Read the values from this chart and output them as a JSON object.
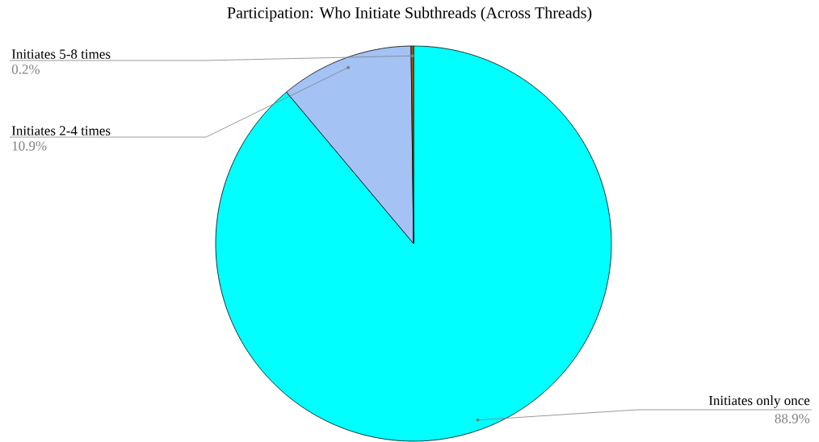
{
  "chart_data": {
    "type": "pie",
    "title": "Participation: Who Initiate Subthreads (Across Threads)",
    "categories": [
      "Initiates only once",
      "Initiates 2-4 times",
      "Initiates 5-8 times"
    ],
    "values": [
      88.9,
      10.9,
      0.2
    ],
    "colors": [
      "#00ffff",
      "#a4c2f4",
      "#b45f06"
    ],
    "value_labels": [
      "88.9%",
      "10.9%",
      "0.2%"
    ]
  }
}
